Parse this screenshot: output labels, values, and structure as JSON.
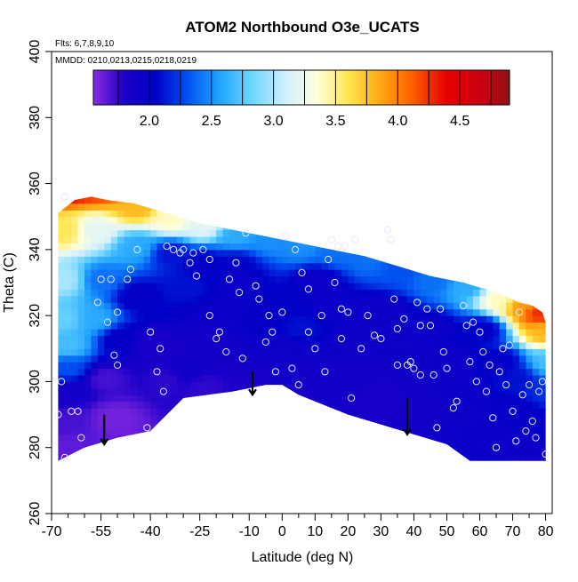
{
  "chart_data": {
    "type": "heatmap",
    "title": "ATOM2 Northbound O3e_UCATS",
    "annotations": [
      "Flts: 6,7,8,9,10",
      "MMDD: 0210,0213,0215,0218,0219"
    ],
    "xlabel": "Latitude (deg N)",
    "ylabel": "Theta (C)",
    "xlim": [
      -70,
      82
    ],
    "ylim": [
      260,
      400
    ],
    "x_ticks": [
      -70,
      -55,
      -40,
      -25,
      -10,
      0,
      10,
      20,
      30,
      40,
      50,
      60,
      70,
      80
    ],
    "x_minor_ticks": [
      -65,
      -60,
      -50,
      -45,
      -35,
      -30,
      -20,
      -15,
      -5,
      5,
      15,
      25,
      35,
      45,
      55,
      65,
      75
    ],
    "y_ticks": [
      260,
      280,
      300,
      320,
      340,
      360,
      380,
      400
    ],
    "colorbar": {
      "range": [
        1.55,
        4.9
      ],
      "ticks": [
        2.0,
        2.5,
        3.0,
        3.5,
        4.0,
        4.5
      ],
      "stops": [
        {
          "v": 1.55,
          "c": "#8a2be2"
        },
        {
          "v": 1.8,
          "c": "#1a00c8"
        },
        {
          "v": 2.05,
          "c": "#0000c8"
        },
        {
          "v": 2.3,
          "c": "#0050f0"
        },
        {
          "v": 2.55,
          "c": "#1ea0ff"
        },
        {
          "v": 2.8,
          "c": "#64d2ff"
        },
        {
          "v": 3.1,
          "c": "#d2f0ff"
        },
        {
          "v": 3.35,
          "c": "#ffffdc"
        },
        {
          "v": 3.6,
          "c": "#ffe650"
        },
        {
          "v": 3.85,
          "c": "#ffaa14"
        },
        {
          "v": 4.1,
          "c": "#ff6400"
        },
        {
          "v": 4.4,
          "c": "#e60000"
        },
        {
          "v": 4.7,
          "c": "#c80014"
        },
        {
          "v": 4.9,
          "c": "#8c1414"
        }
      ]
    },
    "coverage_top": [
      [
        -68,
        351
      ],
      [
        -63,
        355
      ],
      [
        -58,
        356
      ],
      [
        -53,
        355
      ],
      [
        -45,
        354
      ],
      [
        -35,
        351
      ],
      [
        -25,
        348
      ],
      [
        -15,
        346
      ],
      [
        -5,
        344
      ],
      [
        5,
        342
      ],
      [
        15,
        340
      ],
      [
        25,
        338
      ],
      [
        35,
        335
      ],
      [
        45,
        332
      ],
      [
        55,
        330
      ],
      [
        65,
        327
      ],
      [
        72,
        324
      ],
      [
        76,
        323
      ],
      [
        79,
        321
      ],
      [
        80,
        318
      ],
      [
        80,
        312
      ],
      [
        80,
        298
      ],
      [
        80,
        284
      ],
      [
        80,
        277
      ]
    ],
    "coverage_bottom": [
      [
        80,
        276
      ],
      [
        57,
        276
      ],
      [
        50,
        281
      ],
      [
        40,
        284
      ],
      [
        30,
        287
      ],
      [
        20,
        290
      ],
      [
        10,
        294
      ],
      [
        5,
        296
      ],
      [
        0,
        299
      ],
      [
        -5,
        299
      ],
      [
        -15,
        297
      ],
      [
        -30,
        295
      ],
      [
        -40,
        285
      ],
      [
        -50,
        283
      ],
      [
        -60,
        280
      ],
      [
        -68,
        276
      ]
    ],
    "field_anchors": [
      [
        -66,
        358,
        4.4
      ],
      [
        -60,
        362,
        4.6
      ],
      [
        -55,
        359,
        4.3
      ],
      [
        -45,
        352,
        3.8
      ],
      [
        -35,
        348,
        3.4
      ],
      [
        -25,
        346,
        3.2
      ],
      [
        -15,
        343,
        2.6
      ],
      [
        -5,
        342,
        2.5
      ],
      [
        5,
        340,
        2.5
      ],
      [
        15,
        338,
        2.4
      ],
      [
        25,
        336,
        2.4
      ],
      [
        35,
        333,
        2.3
      ],
      [
        45,
        330,
        2.4
      ],
      [
        55,
        328,
        2.6
      ],
      [
        65,
        324,
        3.4
      ],
      [
        72,
        322,
        3.9
      ],
      [
        77,
        320,
        4.3
      ],
      [
        79,
        314,
        3.8
      ],
      [
        80,
        305,
        2.7
      ],
      [
        80,
        296,
        2.2
      ],
      [
        79,
        285,
        2.0
      ],
      [
        75,
        280,
        1.9
      ],
      [
        -67,
        345,
        3.6
      ],
      [
        -67,
        330,
        3.0
      ],
      [
        -67,
        318,
        2.8
      ],
      [
        -66,
        310,
        2.7
      ],
      [
        -66,
        303,
        2.3
      ],
      [
        -66,
        296,
        1.85
      ],
      [
        -66,
        287,
        1.7
      ],
      [
        -66,
        279,
        1.65
      ],
      [
        -58,
        345,
        3.2
      ],
      [
        -56,
        330,
        2.4
      ],
      [
        -58,
        318,
        2.6
      ],
      [
        -55,
        300,
        1.7
      ],
      [
        -52,
        288,
        1.6
      ],
      [
        -50,
        312,
        2.0
      ],
      [
        -45,
        325,
        2.0
      ],
      [
        -40,
        310,
        1.8
      ],
      [
        -35,
        300,
        1.75
      ],
      [
        -30,
        302,
        1.9
      ],
      [
        -45,
        340,
        2.6
      ],
      [
        -35,
        338,
        2.1
      ],
      [
        -25,
        335,
        2.0
      ],
      [
        -20,
        320,
        1.95
      ],
      [
        -15,
        330,
        1.95
      ],
      [
        -10,
        318,
        2.0
      ],
      [
        -5,
        305,
        1.9
      ],
      [
        0,
        308,
        1.9
      ],
      [
        5,
        315,
        2.1
      ],
      [
        10,
        330,
        1.95
      ],
      [
        15,
        322,
        1.95
      ],
      [
        20,
        310,
        1.9
      ],
      [
        25,
        300,
        1.85
      ],
      [
        30,
        320,
        1.9
      ],
      [
        35,
        310,
        1.9
      ],
      [
        40,
        300,
        1.9
      ],
      [
        45,
        315,
        1.95
      ],
      [
        50,
        305,
        1.9
      ],
      [
        55,
        295,
        1.95
      ],
      [
        60,
        315,
        2.0
      ],
      [
        65,
        305,
        2.0
      ],
      [
        70,
        300,
        2.1
      ],
      [
        70,
        290,
        2.0
      ],
      [
        60,
        285,
        1.95
      ],
      [
        50,
        290,
        1.9
      ],
      [
        40,
        292,
        1.85
      ],
      [
        30,
        295,
        1.8
      ],
      [
        15,
        298,
        1.85
      ],
      [
        5,
        300,
        1.85
      ],
      [
        -10,
        300,
        1.8
      ],
      [
        -25,
        298,
        1.75
      ],
      [
        -15,
        335,
        2.05
      ],
      [
        -30,
        328,
        2.1
      ],
      [
        -22,
        312,
        1.85
      ]
    ],
    "points": [
      [
        -66,
        356
      ],
      [
        -67,
        300
      ],
      [
        -68,
        290
      ],
      [
        -64,
        291
      ],
      [
        -61,
        283
      ],
      [
        -62,
        291
      ],
      [
        -66,
        277
      ],
      [
        -55,
        331
      ],
      [
        -52,
        331
      ],
      [
        -56,
        324
      ],
      [
        -51,
        308
      ],
      [
        -50,
        321
      ],
      [
        -53,
        318
      ],
      [
        -50,
        305
      ],
      [
        -47,
        331
      ],
      [
        -46,
        334
      ],
      [
        -44,
        340
      ],
      [
        -41,
        286
      ],
      [
        -40,
        315
      ],
      [
        -38,
        303
      ],
      [
        -37,
        310
      ],
      [
        -36,
        297
      ],
      [
        -35,
        341
      ],
      [
        -33,
        340
      ],
      [
        -31,
        339
      ],
      [
        -30,
        340
      ],
      [
        -28,
        336
      ],
      [
        -27,
        339
      ],
      [
        -26,
        332
      ],
      [
        -24,
        340
      ],
      [
        -22,
        337
      ],
      [
        -22,
        320
      ],
      [
        -20,
        313
      ],
      [
        -19,
        315
      ],
      [
        -17,
        309
      ],
      [
        -16,
        331
      ],
      [
        -14,
        336
      ],
      [
        -13,
        327
      ],
      [
        -12,
        307
      ],
      [
        -11,
        345
      ],
      [
        -8,
        329
      ],
      [
        -7,
        325
      ],
      [
        -5,
        312
      ],
      [
        -4,
        320
      ],
      [
        -3,
        315
      ],
      [
        -2,
        303
      ],
      [
        0,
        321
      ],
      [
        1,
        344
      ],
      [
        3,
        304
      ],
      [
        4,
        340
      ],
      [
        5,
        299
      ],
      [
        6,
        333
      ],
      [
        8,
        328
      ],
      [
        8,
        315
      ],
      [
        10,
        310
      ],
      [
        12,
        320
      ],
      [
        13,
        303
      ],
      [
        14,
        337
      ],
      [
        15,
        343
      ],
      [
        16,
        330
      ],
      [
        17,
        341
      ],
      [
        18,
        322
      ],
      [
        18,
        313
      ],
      [
        19,
        341
      ],
      [
        20,
        321
      ],
      [
        21,
        295
      ],
      [
        22,
        343
      ],
      [
        24,
        310
      ],
      [
        26,
        320
      ],
      [
        28,
        314
      ],
      [
        30,
        313
      ],
      [
        32,
        346
      ],
      [
        33,
        343
      ],
      [
        34,
        325
      ],
      [
        35,
        316
      ],
      [
        35,
        305
      ],
      [
        37,
        319
      ],
      [
        38,
        305
      ],
      [
        39,
        306
      ],
      [
        40,
        304
      ],
      [
        41,
        324
      ],
      [
        42,
        317
      ],
      [
        42,
        302
      ],
      [
        44,
        322
      ],
      [
        45,
        317
      ],
      [
        46,
        302
      ],
      [
        47,
        286
      ],
      [
        48,
        322
      ],
      [
        49,
        309
      ],
      [
        50,
        304
      ],
      [
        52,
        292
      ],
      [
        53,
        294
      ],
      [
        55,
        323
      ],
      [
        56,
        317
      ],
      [
        57,
        306
      ],
      [
        58,
        318
      ],
      [
        59,
        300
      ],
      [
        60,
        315
      ],
      [
        61,
        309
      ],
      [
        62,
        297
      ],
      [
        63,
        305
      ],
      [
        64,
        289
      ],
      [
        65,
        280
      ],
      [
        66,
        303
      ],
      [
        67,
        310
      ],
      [
        68,
        299
      ],
      [
        69,
        311
      ],
      [
        70,
        291
      ],
      [
        71,
        282
      ],
      [
        72,
        321
      ],
      [
        73,
        296
      ],
      [
        74,
        285
      ],
      [
        75,
        299
      ],
      [
        76,
        288
      ],
      [
        77,
        283
      ],
      [
        78,
        297
      ],
      [
        79,
        300
      ],
      [
        80,
        278
      ]
    ],
    "arrows": [
      [
        -54,
        290,
        281
      ],
      [
        -9,
        303,
        296
      ],
      [
        38,
        295,
        284
      ]
    ]
  }
}
